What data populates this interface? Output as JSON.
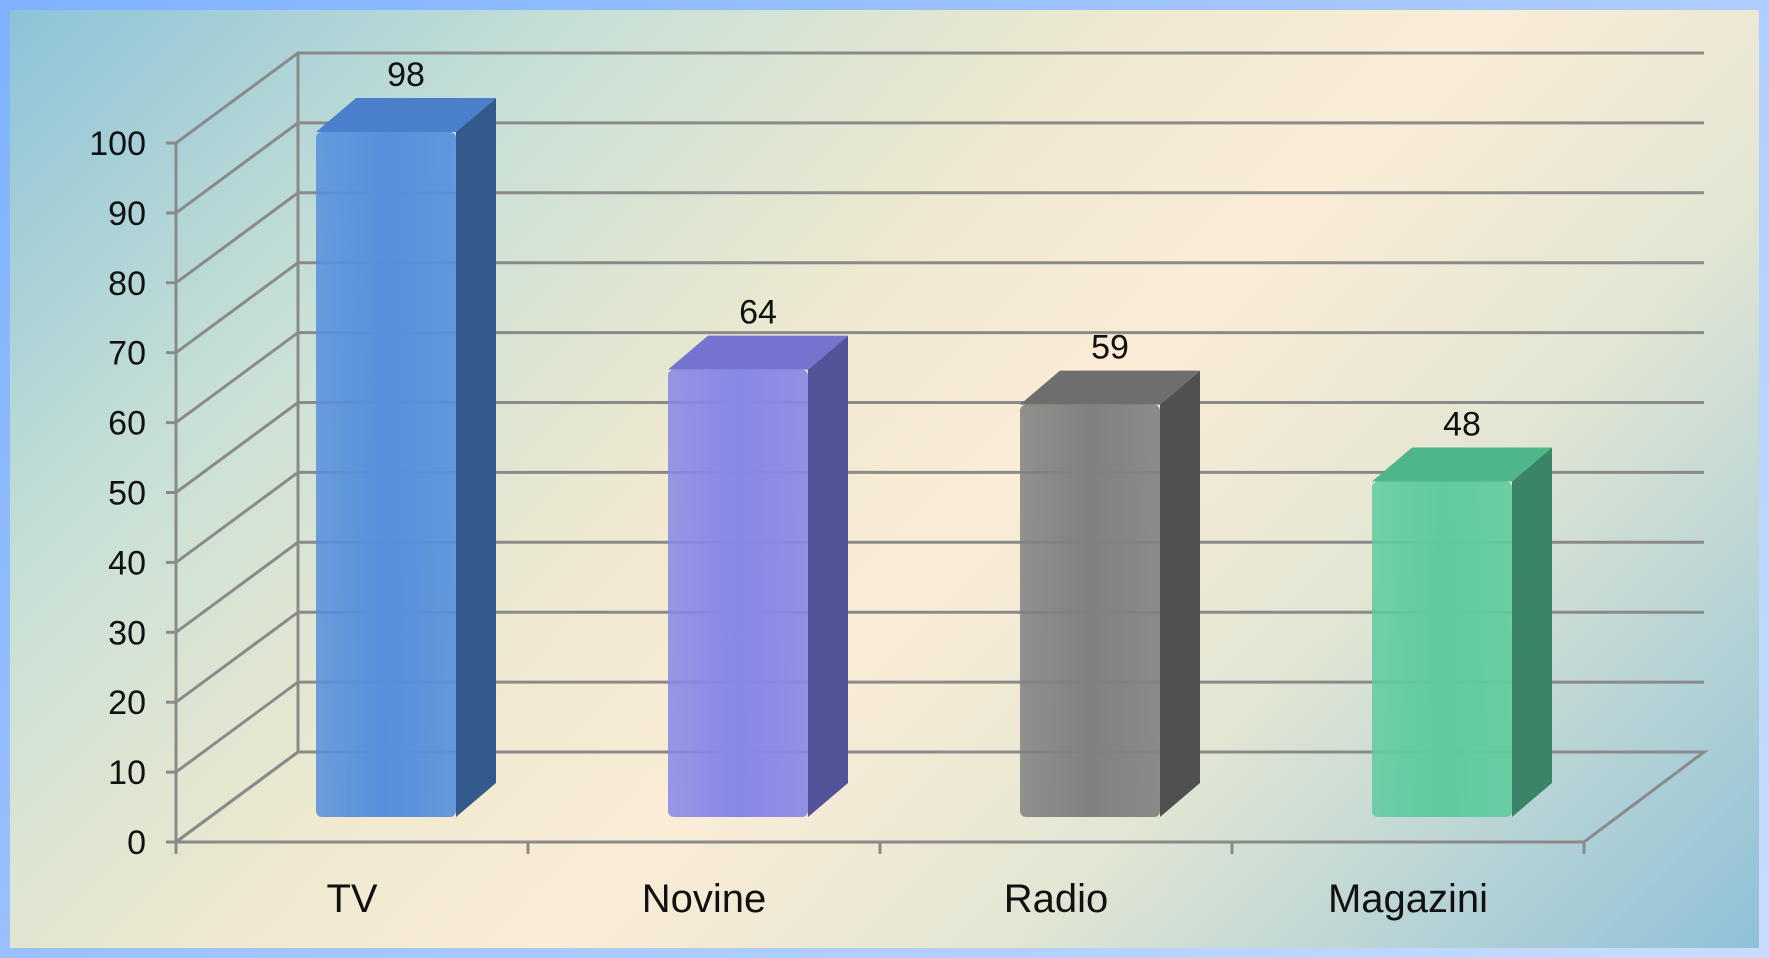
{
  "chart_data": {
    "type": "bar",
    "categories": [
      "TV",
      "Novine",
      "Radio",
      "Magazini"
    ],
    "values": [
      98,
      64,
      59,
      48
    ],
    "ylim": [
      0,
      100
    ],
    "yticks": [
      0,
      10,
      20,
      30,
      40,
      50,
      60,
      70,
      80,
      90,
      100
    ],
    "grid": true,
    "legend": "none",
    "colors": {
      "TV": {
        "front": "#568fdc",
        "side": "#335a8c",
        "top": "#4a7fcb"
      },
      "Novine": {
        "front": "#8787e6",
        "side": "#53539a",
        "top": "#7474d0"
      },
      "Radio": {
        "front": "#808080",
        "side": "#505050",
        "top": "#6e6e6e"
      },
      "Magazini": {
        "front": "#5fcb9e",
        "side": "#3a8467",
        "top": "#4fb68a"
      }
    }
  }
}
